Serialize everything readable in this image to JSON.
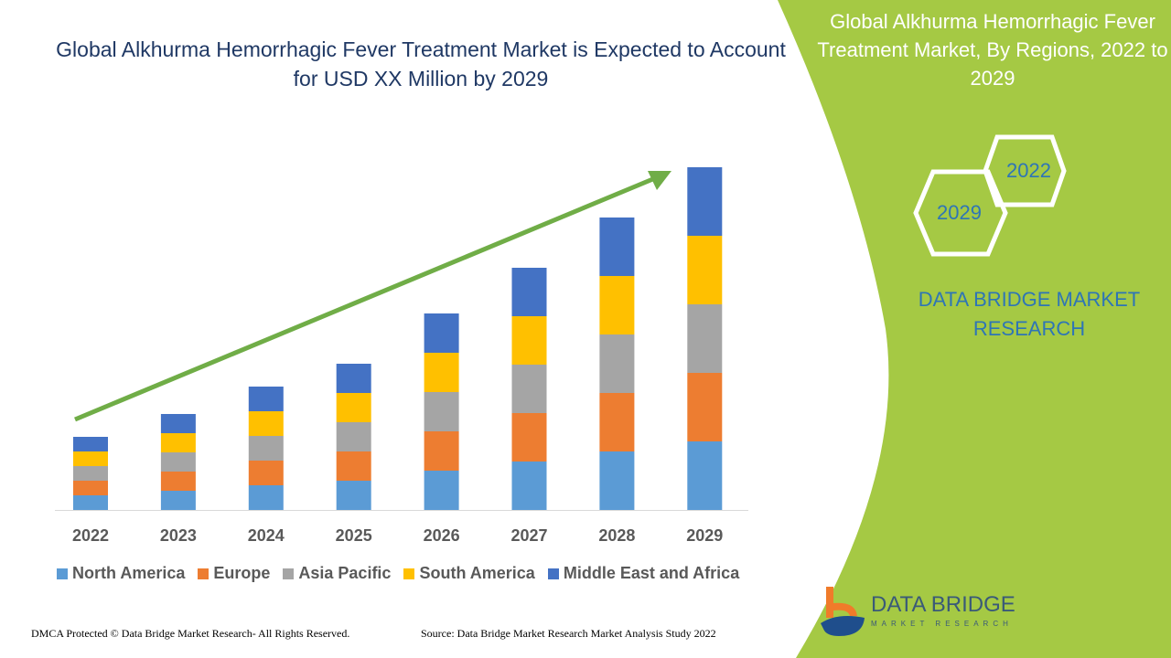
{
  "title": "Global Alkhurma Hemorrhagic Fever Treatment Market is Expected to Account for USD XX Million by 2029",
  "side_panel": {
    "title": "Global Alkhurma Hemorrhagic Fever Treatment Market, By Regions, 2022 to 2029",
    "hex_labels": [
      "2022",
      "2029"
    ],
    "brand": "DATA BRIDGE MARKET RESEARCH",
    "logo_text": "DATA BRIDGE",
    "logo_subtext": "MARKET RESEARCH",
    "color": "#a5c944"
  },
  "footer": {
    "left": "DMCA Protected © Data Bridge Market Research- All Rights Reserved.",
    "right": "Source: Data Bridge Market Research Market Analysis Study 2022"
  },
  "chart_data": {
    "type": "bar",
    "stacked": true,
    "categories": [
      "2022",
      "2023",
      "2024",
      "2025",
      "2026",
      "2027",
      "2028",
      "2029"
    ],
    "series": [
      {
        "name": "North America",
        "color": "#5b9bd5",
        "values": [
          16,
          21,
          27,
          32,
          43,
          53,
          64,
          75
        ]
      },
      {
        "name": "Europe",
        "color": "#ed7d31",
        "values": [
          16,
          21,
          27,
          32,
          43,
          53,
          64,
          75
        ]
      },
      {
        "name": "Asia Pacific",
        "color": "#a5a5a5",
        "values": [
          16,
          21,
          27,
          32,
          43,
          53,
          64,
          75
        ]
      },
      {
        "name": "South America",
        "color": "#ffc000",
        "values": [
          16,
          21,
          27,
          32,
          43,
          53,
          64,
          75
        ]
      },
      {
        "name": "Middle East and Africa",
        "color": "#4472c4",
        "values": [
          16,
          21,
          27,
          32,
          43,
          53,
          64,
          75
        ]
      }
    ],
    "y_axis_shown": false,
    "grid": false,
    "legend": "bottom",
    "annotation": "green upward trend arrow",
    "arrow_color": "#70ad47"
  }
}
